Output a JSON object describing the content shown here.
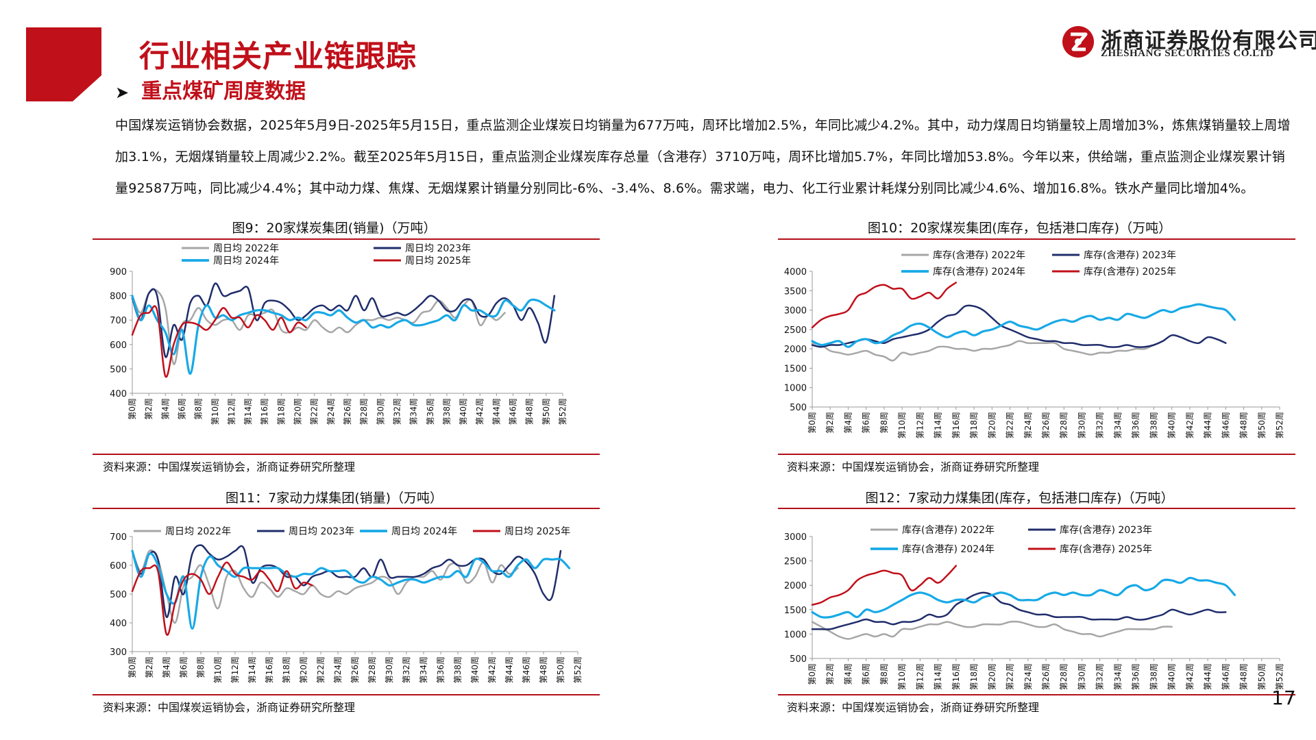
{
  "header": {
    "title": "行业相关产业链跟踪",
    "subtitle": "重点煤矿周度数据",
    "company_cn": "浙商证券股份有限公司",
    "company_en": "ZHESHANG SECURITIES CO.LTD"
  },
  "paragraph": "中国煤炭运销协会数据，2025年5月9日-2025年5月15日，重点监测企业煤炭日均销量为677万吨，周环比增加2.5%，年同比减少4.2%。其中，动力煤周日均销量较上周增加3%，炼焦煤销量较上周增加3.1%，无烟煤销量较上周减少2.2%。截至2025年5月15日，重点监测企业煤炭库存总量（含港存）3710万吨，周环比增加5.7%，年同比增加53.8%。今年以来，供给端，重点监测企业煤炭累计销量92587万吨，同比减少4.4%；其中动力煤、焦煤、无烟煤累计销量分别同比-6%、-3.4%、8.6%。需求端，电力、化工行业累计耗煤分别同比减少4.6%、增加16.8%。铁水产量同比增加4%。",
  "page_number": "17",
  "colors": {
    "brand_red": "#c0101a",
    "s2022": "#a6a6a6",
    "s2023": "#1f2d6b",
    "s2024": "#18a9e6",
    "s2025": "#c0101a"
  },
  "chart_data": [
    {
      "type": "line",
      "title": "图9：20家煤炭集团(销量)（万吨）",
      "source": "资料来源：中国煤炭运销协会，浙商证券研究所整理",
      "ylim": [
        400,
        900
      ],
      "yticks": [
        400,
        500,
        600,
        700,
        800,
        900
      ],
      "legend_position": "top",
      "grid": false,
      "x_tick_labels": [
        "第0周",
        "第2周",
        "第4周",
        "第6周",
        "第8周",
        "第10周",
        "第12周",
        "第14周",
        "第16周",
        "第18周",
        "第20周",
        "第22周",
        "第24周",
        "第26周",
        "第28周",
        "第30周",
        "第32周",
        "第34周",
        "第36周",
        "第38周",
        "第40周",
        "第42周",
        "第44周",
        "第46周",
        "第48周",
        "第50周",
        "第52周"
      ],
      "series": [
        {
          "name": "周日均 2022年",
          "values": [
            800,
            730,
            810,
            820,
            750,
            520,
            680,
            700,
            750,
            700,
            680,
            700,
            700,
            660,
            720,
            720,
            730,
            740,
            660,
            650,
            670,
            660,
            700,
            670,
            650,
            670,
            650,
            680,
            700,
            700,
            710,
            700,
            710,
            700,
            690,
            730,
            740,
            780,
            750,
            710,
            760,
            780,
            680,
            720,
            700,
            730
          ]
        },
        {
          "name": "周日均 2023年",
          "values": [
            790,
            700,
            810,
            800,
            550,
            680,
            620,
            770,
            800,
            760,
            850,
            800,
            810,
            820,
            830,
            700,
            770,
            780,
            770,
            740,
            700,
            720,
            750,
            760,
            740,
            760,
            740,
            800,
            740,
            790,
            720,
            720,
            730,
            720,
            740,
            770,
            800,
            780,
            740,
            740,
            780,
            780,
            720,
            720,
            770,
            790,
            760,
            700,
            750,
            690,
            610,
            800
          ]
        },
        {
          "name": "周日均 2024年",
          "values": [
            800,
            700,
            760,
            700,
            650,
            560,
            660,
            480,
            680,
            760,
            710,
            720,
            700,
            720,
            730,
            740,
            740,
            730,
            720,
            700,
            710,
            700,
            730,
            730,
            720,
            740,
            710,
            690,
            700,
            670,
            680,
            670,
            690,
            700,
            680,
            680,
            690,
            700,
            720,
            700,
            760,
            740,
            740,
            720,
            720,
            780,
            760,
            740,
            780,
            780,
            760,
            740
          ]
        },
        {
          "name": "周日均 2025年",
          "values": [
            640,
            720,
            730,
            740,
            470,
            600,
            680,
            690,
            680,
            660,
            700,
            750,
            710,
            710,
            670,
            720,
            700,
            660,
            710,
            650,
            690,
            670
          ]
        }
      ]
    },
    {
      "type": "line",
      "title": "图10：20家煤炭集团(库存，包括港口库存)（万吨）",
      "source": "资料来源：中国煤炭运销协会，浙商证券研究所整理",
      "ylim": [
        500,
        4000
      ],
      "yticks": [
        500,
        1000,
        1500,
        2000,
        2500,
        3000,
        3500,
        4000
      ],
      "legend_position": "top",
      "grid": false,
      "x_tick_labels": [
        "第0周",
        "第2周",
        "第4周",
        "第6周",
        "第8周",
        "第10周",
        "第12周",
        "第14周",
        "第16周",
        "第18周",
        "第20周",
        "第22周",
        "第24周",
        "第26周",
        "第28周",
        "第30周",
        "第32周",
        "第34周",
        "第36周",
        "第38周",
        "第40周",
        "第42周",
        "第44周",
        "第46周",
        "第48周",
        "第50周",
        "第52周"
      ],
      "series": [
        {
          "name": "库存(含港存) 2022年",
          "values": [
            2150,
            2100,
            1950,
            1900,
            1850,
            1900,
            1950,
            1850,
            1800,
            1700,
            1900,
            1850,
            1900,
            1950,
            2050,
            2050,
            2000,
            2000,
            1950,
            2000,
            2000,
            2050,
            2100,
            2200,
            2150,
            2150,
            2150,
            2150,
            2000,
            1950,
            1900,
            1850,
            1900,
            1900,
            1950,
            1950,
            2000,
            2000,
            2100,
            2200
          ]
        },
        {
          "name": "库存(含港存) 2023年",
          "values": [
            2100,
            2050,
            2100,
            2100,
            2150,
            2200,
            2250,
            2200,
            2150,
            2250,
            2300,
            2350,
            2400,
            2500,
            2700,
            2850,
            2900,
            3100,
            3100,
            3000,
            2800,
            2600,
            2500,
            2400,
            2300,
            2250,
            2200,
            2200,
            2150,
            2150,
            2100,
            2100,
            2100,
            2050,
            2050,
            2100,
            2050,
            2050,
            2100,
            2200,
            2350,
            2300,
            2200,
            2150,
            2300,
            2250,
            2150
          ]
        },
        {
          "name": "库存(含港存) 2024年",
          "values": [
            2200,
            2100,
            2150,
            2200,
            2050,
            2200,
            2250,
            2150,
            2200,
            2350,
            2450,
            2600,
            2650,
            2550,
            2400,
            2300,
            2400,
            2450,
            2350,
            2450,
            2500,
            2600,
            2700,
            2600,
            2550,
            2500,
            2600,
            2700,
            2750,
            2700,
            2800,
            2850,
            2750,
            2800,
            2750,
            2900,
            2850,
            2800,
            2900,
            3000,
            2950,
            3050,
            3100,
            3150,
            3100,
            3050,
            3000,
            2750
          ]
        },
        {
          "name": "库存(含港存) 2025年",
          "values": [
            2550,
            2750,
            2850,
            2900,
            3000,
            3350,
            3450,
            3600,
            3650,
            3550,
            3550,
            3300,
            3350,
            3450,
            3300,
            3550,
            3710
          ]
        }
      ]
    },
    {
      "type": "line",
      "title": "图11：7家动力煤集团(销量)（万吨）",
      "source": "资料来源：中国煤炭运销协会，浙商证券研究所整理",
      "ylim": [
        300,
        700
      ],
      "yticks": [
        300,
        400,
        500,
        600,
        700
      ],
      "legend_position": "top",
      "grid": false,
      "x_tick_labels": [
        "第0周",
        "第2周",
        "第4周",
        "第6周",
        "第8周",
        "第10周",
        "第12周",
        "第14周",
        "第16周",
        "第18周",
        "第20周",
        "第22周",
        "第24周",
        "第26周",
        "第28周",
        "第30周",
        "第32周",
        "第34周",
        "第36周",
        "第38周",
        "第40周",
        "第42周",
        "第44周",
        "第46周",
        "第48周",
        "第50周",
        "第52周"
      ],
      "series": [
        {
          "name": "周日均 2022年",
          "values": [
            650,
            580,
            650,
            620,
            500,
            400,
            530,
            560,
            600,
            530,
            450,
            560,
            580,
            520,
            490,
            540,
            520,
            490,
            520,
            510,
            500,
            530,
            500,
            490,
            510,
            500,
            520,
            530,
            540,
            560,
            550,
            500,
            540,
            560,
            560,
            580,
            550,
            600,
            600,
            540,
            560,
            610,
            540,
            600,
            570,
            590
          ]
        },
        {
          "name": "周日均 2023年",
          "values": [
            650,
            570,
            640,
            620,
            420,
            560,
            500,
            640,
            670,
            640,
            620,
            630,
            650,
            660,
            540,
            590,
            600,
            590,
            560,
            560,
            530,
            560,
            570,
            580,
            560,
            560,
            560,
            590,
            560,
            620,
            560,
            560,
            560,
            560,
            570,
            590,
            600,
            620,
            600,
            600,
            620,
            620,
            580,
            570,
            600,
            630,
            610,
            570,
            500,
            490,
            650
          ]
        },
        {
          "name": "周日均 2024年",
          "values": [
            650,
            560,
            640,
            600,
            500,
            470,
            560,
            380,
            560,
            630,
            600,
            580,
            560,
            590,
            590,
            590,
            590,
            590,
            570,
            560,
            570,
            570,
            590,
            580,
            580,
            580,
            550,
            540,
            560,
            550,
            530,
            540,
            550,
            550,
            540,
            550,
            560,
            560,
            580,
            560,
            620,
            610,
            580,
            580,
            560,
            600,
            620,
            590,
            620,
            620,
            620,
            590
          ]
        },
        {
          "name": "周日均 2025年",
          "values": [
            510,
            580,
            590,
            580,
            360,
            470,
            550,
            570,
            550,
            500,
            560,
            610,
            570,
            560,
            550,
            580,
            550,
            510,
            580,
            520,
            540,
            530
          ]
        }
      ]
    },
    {
      "type": "line",
      "title": "图12：7家动力煤集团(库存，包括港口库存)（万吨）",
      "source": "资料来源：中国煤炭运销协会，浙商证券研究所整理",
      "ylim": [
        500,
        3000
      ],
      "yticks": [
        500,
        1000,
        1500,
        2000,
        2500,
        3000
      ],
      "legend_position": "top",
      "grid": false,
      "x_tick_labels": [
        "第0周",
        "第2周",
        "第4周",
        "第6周",
        "第8周",
        "第10周",
        "第12周",
        "第14周",
        "第16周",
        "第18周",
        "第20周",
        "第22周",
        "第24周",
        "第26周",
        "第28周",
        "第30周",
        "第32周",
        "第34周",
        "第36周",
        "第38周",
        "第40周",
        "第42周",
        "第44周",
        "第46周",
        "第48周",
        "第50周",
        "第52周"
      ],
      "series": [
        {
          "name": "库存(含港存) 2022年",
          "values": [
            1250,
            1150,
            1050,
            950,
            900,
            950,
            1000,
            950,
            1000,
            950,
            1100,
            1100,
            1150,
            1200,
            1200,
            1250,
            1200,
            1150,
            1150,
            1200,
            1200,
            1200,
            1250,
            1250,
            1200,
            1150,
            1150,
            1200,
            1100,
            1050,
            1000,
            1000,
            950,
            1000,
            1050,
            1100,
            1100,
            1100,
            1100,
            1150,
            1150
          ]
        },
        {
          "name": "库存(含港存) 2023年",
          "values": [
            1100,
            1100,
            1100,
            1150,
            1200,
            1250,
            1300,
            1250,
            1250,
            1200,
            1250,
            1250,
            1300,
            1400,
            1350,
            1400,
            1600,
            1700,
            1800,
            1850,
            1800,
            1650,
            1600,
            1500,
            1450,
            1400,
            1400,
            1350,
            1350,
            1350,
            1350,
            1300,
            1300,
            1300,
            1300,
            1350,
            1300,
            1300,
            1350,
            1400,
            1500,
            1450,
            1400,
            1450,
            1500,
            1450,
            1450
          ]
        },
        {
          "name": "库存(含港存) 2024年",
          "values": [
            1450,
            1350,
            1350,
            1400,
            1450,
            1350,
            1500,
            1450,
            1500,
            1600,
            1700,
            1800,
            1850,
            1800,
            1700,
            1650,
            1700,
            1700,
            1650,
            1750,
            1800,
            1850,
            1800,
            1700,
            1700,
            1700,
            1800,
            1850,
            1800,
            1850,
            1800,
            1800,
            1900,
            1850,
            1800,
            1950,
            2000,
            1900,
            1950,
            2100,
            2100,
            2050,
            2150,
            2100,
            2100,
            2050,
            2000,
            1800
          ]
        },
        {
          "name": "库存(含港存) 2025年",
          "values": [
            1600,
            1650,
            1750,
            1800,
            1900,
            2100,
            2200,
            2250,
            2300,
            2250,
            2200,
            1900,
            2000,
            2150,
            2050,
            2200,
            2400
          ]
        }
      ]
    }
  ]
}
